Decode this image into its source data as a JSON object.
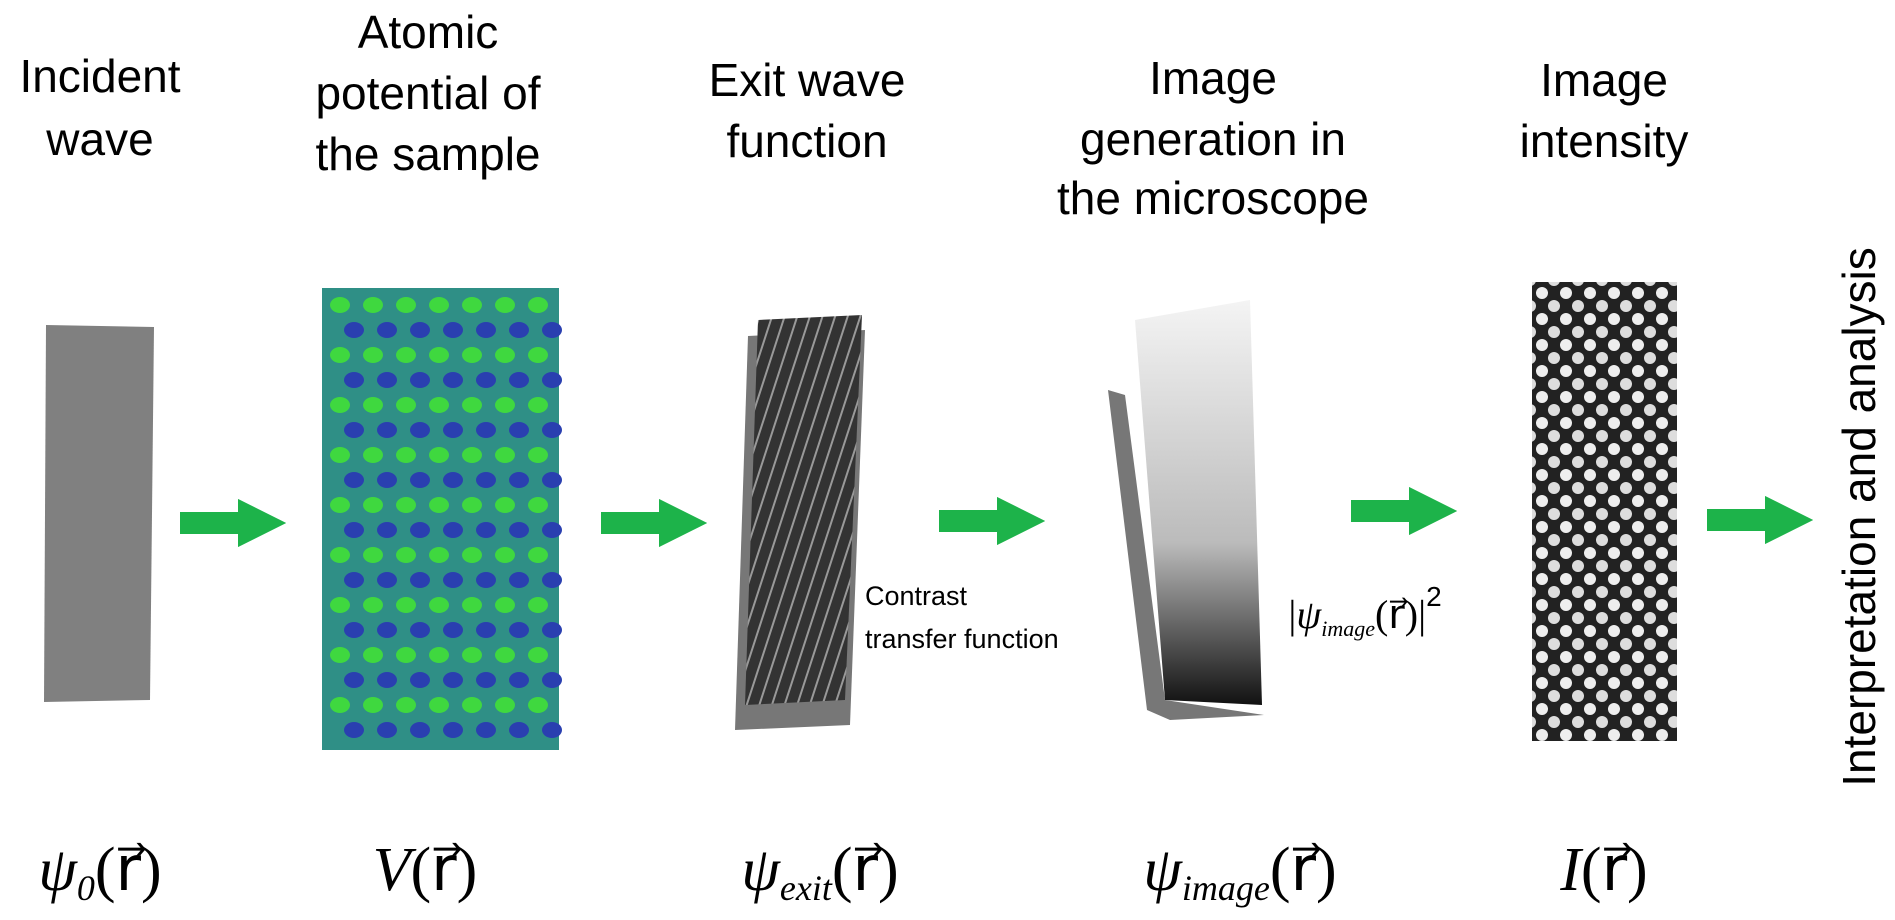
{
  "stages": [
    {
      "title": [
        "Incident",
        "wave"
      ],
      "formula": {
        "main": "ψ",
        "sub": "0",
        "arg": "(r⃗)"
      }
    },
    {
      "title": [
        "Atomic",
        "potential of",
        "the sample"
      ],
      "formula": {
        "main": "V",
        "arg": "(r⃗)"
      }
    },
    {
      "title": [
        "Exit wave",
        "function"
      ],
      "formula": {
        "main": "ψ",
        "sub": "exit",
        "arg": "(r⃗)"
      }
    },
    {
      "title": [
        "Image",
        "generation in",
        "the microscope"
      ],
      "formula": {
        "main": "ψ",
        "sub": "image",
        "arg": "(r⃗)"
      }
    },
    {
      "title": [
        "Image",
        "intensity"
      ],
      "formula": {
        "main": "I",
        "arg": "(r⃗)"
      }
    }
  ],
  "annotations": {
    "contrast": [
      "Contrast",
      "transfer function"
    ],
    "intensity_formula": {
      "open": "|",
      "main": "ψ",
      "sub": "image",
      "arg": "(r⃗)",
      "close": "|",
      "power": "2"
    },
    "final": "Interpretation and analysis"
  }
}
